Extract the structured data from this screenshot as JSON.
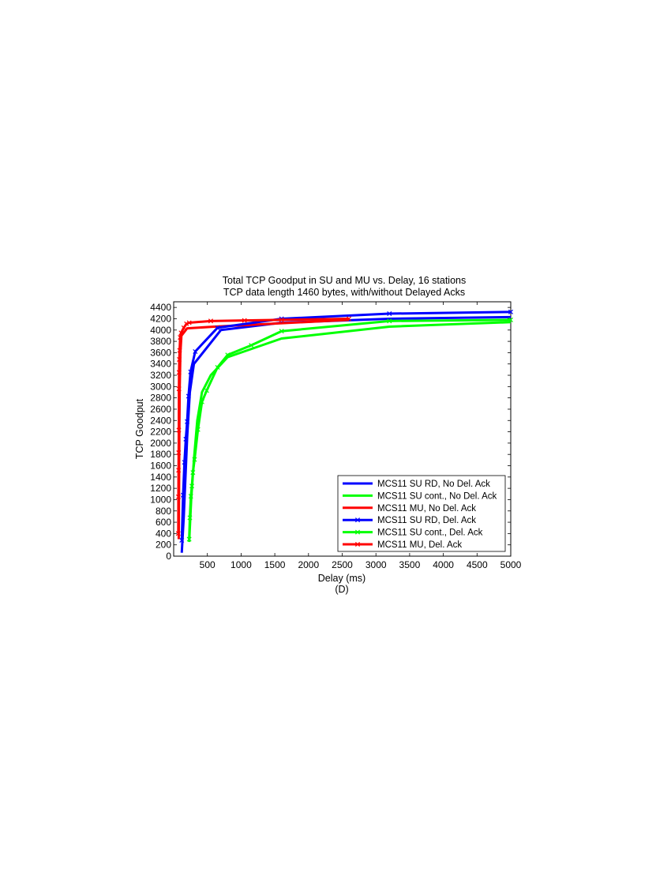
{
  "chart_data": {
    "type": "line",
    "title": "Total TCP Goodput in SU and MU vs. Delay, 16 stations",
    "subtitle": "TCP data length 1460 bytes, with/without Delayed Acks",
    "xlabel": "Delay (ms)",
    "caption": "(D)",
    "ylabel": "TCP Goodput",
    "xlim": [
      0,
      5000
    ],
    "ylim": [
      0,
      4500
    ],
    "xticks": [
      500,
      1000,
      1500,
      2000,
      2500,
      3000,
      3500,
      4000,
      4500,
      5000
    ],
    "yticks": [
      0,
      200,
      400,
      600,
      800,
      1000,
      1200,
      1400,
      1600,
      1800,
      2000,
      2200,
      2400,
      2600,
      2800,
      3000,
      3200,
      3400,
      3600,
      3800,
      4000,
      4200,
      4400
    ],
    "grid": false,
    "legend_position": "bottom-right",
    "series": [
      {
        "name": "MCS11 SU RD, No Del. Ack",
        "color": "#0000ff",
        "marker": "none",
        "points": [
          [
            120,
            60
          ],
          [
            150,
            700
          ],
          [
            175,
            1400
          ],
          [
            200,
            2100
          ],
          [
            240,
            2900
          ],
          [
            300,
            3400
          ],
          [
            700,
            4000
          ],
          [
            1600,
            4130
          ],
          [
            3200,
            4200
          ],
          [
            5000,
            4230
          ]
        ]
      },
      {
        "name": "MCS11 SU cont., No Del. Ack",
        "color": "#00ff00",
        "marker": "none",
        "points": [
          [
            230,
            250
          ],
          [
            260,
            1000
          ],
          [
            300,
            1700
          ],
          [
            350,
            2400
          ],
          [
            420,
            2900
          ],
          [
            550,
            3200
          ],
          [
            800,
            3520
          ],
          [
            1600,
            3850
          ],
          [
            3200,
            4060
          ],
          [
            5000,
            4140
          ]
        ]
      },
      {
        "name": "MCS11 MU, No Del. Ack",
        "color": "#ff0000",
        "marker": "none",
        "points": [
          [
            75,
            300
          ],
          [
            80,
            1200
          ],
          [
            85,
            2300
          ],
          [
            90,
            3000
          ],
          [
            100,
            3600
          ],
          [
            115,
            3900
          ],
          [
            200,
            4030
          ],
          [
            600,
            4060
          ],
          [
            2600,
            4180
          ]
        ]
      },
      {
        "name": "MCS11 SU RD, Del. Ack",
        "color": "#0000ff",
        "marker": "x",
        "points": [
          [
            120,
            280
          ],
          [
            140,
            1080
          ],
          [
            160,
            1660
          ],
          [
            180,
            2070
          ],
          [
            200,
            2380
          ],
          [
            220,
            2830
          ],
          [
            250,
            3260
          ],
          [
            320,
            3620
          ],
          [
            650,
            4040
          ],
          [
            1600,
            4200
          ],
          [
            3200,
            4290
          ],
          [
            5000,
            4320
          ]
        ]
      },
      {
        "name": "MCS11 SU cont., Del. Ack",
        "color": "#00ff00",
        "marker": "x",
        "points": [
          [
            230,
            300
          ],
          [
            240,
            680
          ],
          [
            255,
            1060
          ],
          [
            270,
            1240
          ],
          [
            285,
            1480
          ],
          [
            310,
            1710
          ],
          [
            360,
            2240
          ],
          [
            420,
            2730
          ],
          [
            490,
            2930
          ],
          [
            650,
            3340
          ],
          [
            800,
            3560
          ],
          [
            1150,
            3730
          ],
          [
            1600,
            3980
          ],
          [
            3200,
            4160
          ],
          [
            5000,
            4180
          ]
        ]
      },
      {
        "name": "MCS11 MU, Del. Ack",
        "color": "#ff0000",
        "marker": "x",
        "points": [
          [
            68,
            400
          ],
          [
            70,
            1050
          ],
          [
            72,
            1520
          ],
          [
            74,
            1830
          ],
          [
            76,
            2230
          ],
          [
            78,
            2960
          ],
          [
            80,
            3250
          ],
          [
            83,
            3480
          ],
          [
            88,
            3640
          ],
          [
            96,
            3870
          ],
          [
            110,
            3950
          ],
          [
            150,
            4040
          ],
          [
            190,
            4110
          ],
          [
            230,
            4130
          ],
          [
            550,
            4160
          ],
          [
            1050,
            4170
          ],
          [
            1600,
            4180
          ],
          [
            2600,
            4200
          ]
        ]
      }
    ]
  }
}
